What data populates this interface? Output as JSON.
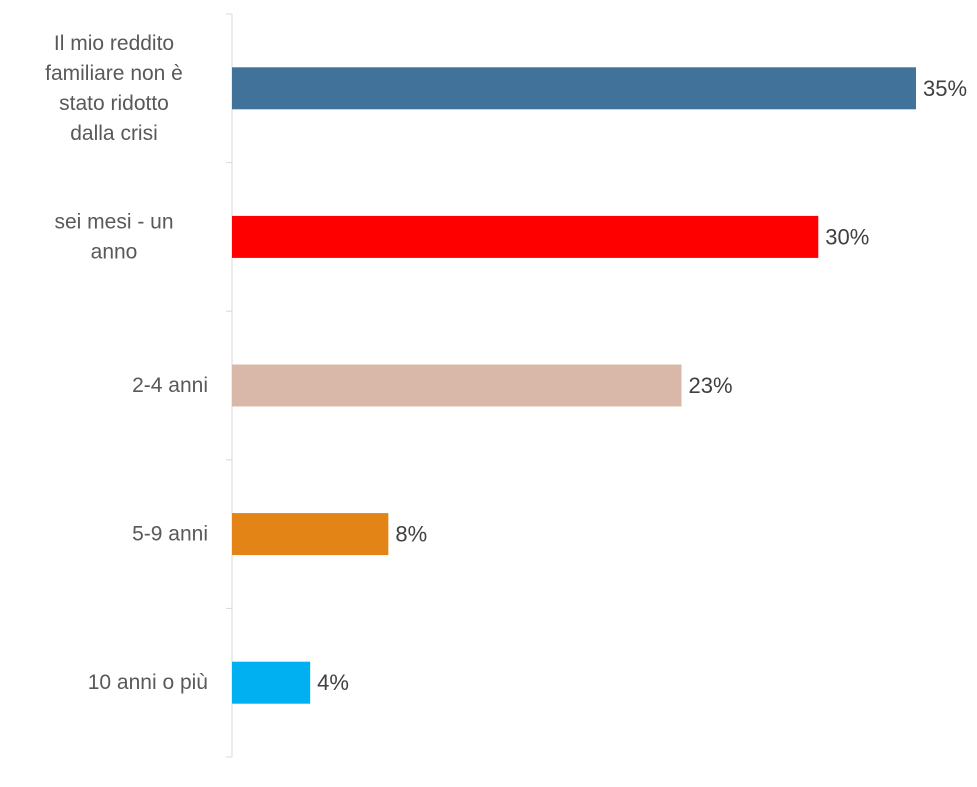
{
  "chart_data": {
    "type": "bar",
    "orientation": "horizontal",
    "categories": [
      "Il mio reddito familiare non è stato ridotto dalla crisi",
      "sei mesi - un anno",
      "2-4 anni",
      "5-9 anni",
      "10 anni o più"
    ],
    "values": [
      35,
      30,
      23,
      8,
      4
    ],
    "value_labels": [
      "35%",
      "30%",
      "23%",
      "8%",
      "4%"
    ],
    "colors": [
      "#41729a",
      "#ff0000",
      "#d9b8aa",
      "#e38416",
      "#00b0f0"
    ],
    "title": "",
    "xlabel": "",
    "ylabel": "",
    "xlim": [
      0,
      35
    ],
    "grid": false,
    "legend": false
  }
}
